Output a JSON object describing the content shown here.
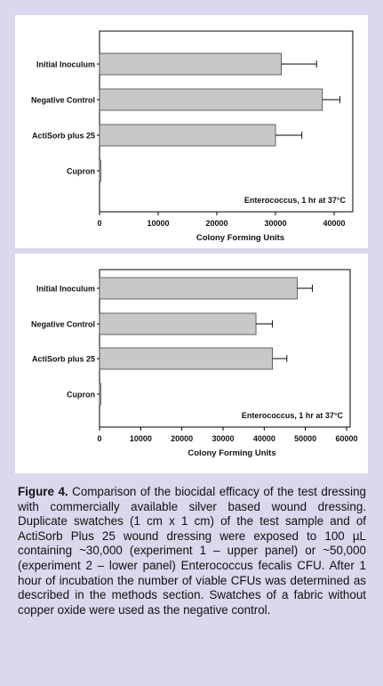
{
  "chart_data": [
    {
      "type": "bar",
      "orientation": "horizontal",
      "categories": [
        "Initial Inoculum",
        "Negative Control",
        "ActiSorb plus 25",
        "Cupron"
      ],
      "values": [
        31000,
        38000,
        30000,
        0
      ],
      "errors": [
        6000,
        3000,
        4500,
        0
      ],
      "xlabel": "Colony Forming Units",
      "xlim": [
        0,
        45000
      ],
      "xticks": [
        0,
        10000,
        20000,
        30000,
        40000
      ],
      "annotation": "Enterococcus, 1 hr at 37°C",
      "bar_color": "#c8c8c8"
    },
    {
      "type": "bar",
      "orientation": "horizontal",
      "categories": [
        "Initial Inoculum",
        "Negative Control",
        "ActiSorb plus 25",
        "Cupron"
      ],
      "values": [
        48000,
        38000,
        42000,
        0
      ],
      "errors": [
        3700,
        4000,
        3500,
        0
      ],
      "xlabel": "Colony Forming Units",
      "xlim": [
        0,
        60000
      ],
      "xticks": [
        0,
        10000,
        20000,
        30000,
        40000,
        50000,
        60000
      ],
      "annotation": "Enterococcus, 1 hr at 37°C",
      "bar_color": "#c8c8c8"
    }
  ],
  "caption": {
    "label": "Figure 4.",
    "text": " Comparison of the biocidal efficacy of the test dressing with commercially available silver based wound dressing. Duplicate swatches (1 cm x 1 cm) of the test sample and of ActiSorb Plus 25 wound dressing were exposed to 100 µL containing ~30,000 (experiment 1 – upper panel) or ~50,000 (experiment 2 – lower panel) Enterococcus fecalis CFU. After 1 hour of incubation the number of viable CFUs was determined as described in the methods section. Swatches of a fabric without copper oxide were used as the negative control."
  }
}
